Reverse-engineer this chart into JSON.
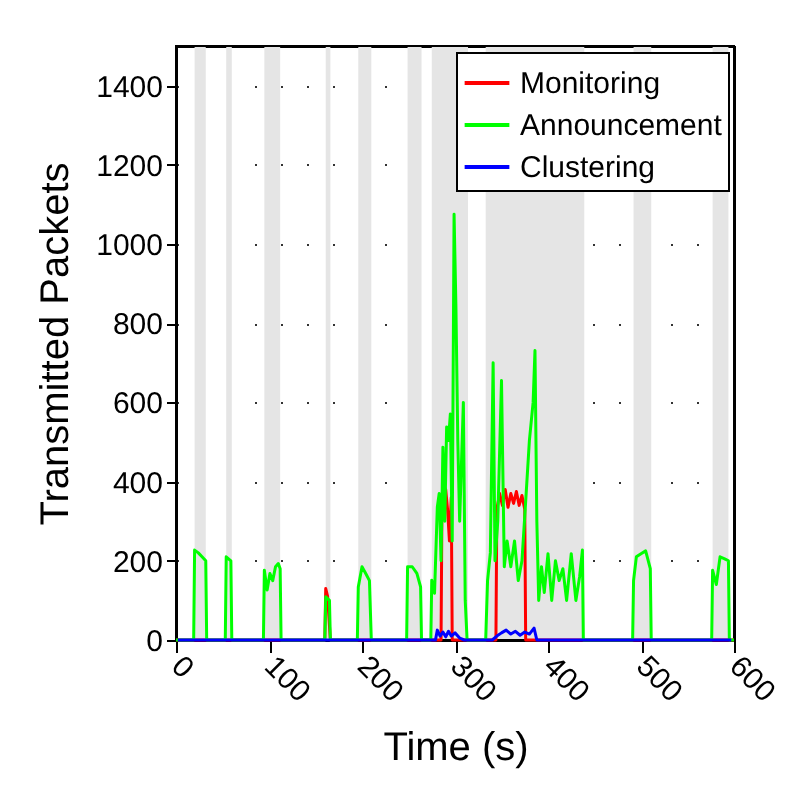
{
  "chart_data": {
    "type": "line",
    "xlabel": "Time (s)",
    "ylabel": "Transmitted Packets",
    "xlim": [
      0,
      600
    ],
    "ylim": [
      0,
      1500
    ],
    "xticks": [
      0,
      100,
      200,
      300,
      400,
      500,
      600
    ],
    "yticks": [
      0,
      200,
      400,
      600,
      800,
      1000,
      1200,
      1400
    ],
    "grid": "y",
    "legend": "top right",
    "line_style": "solid",
    "marker": "none",
    "bands": [
      {
        "axis": "x",
        "from": 20,
        "to": 32,
        "color": "#e5e5e5"
      },
      {
        "axis": "x",
        "from": 54,
        "to": 60,
        "color": "#e5e5e5"
      },
      {
        "axis": "x",
        "from": 95,
        "to": 112,
        "color": "#e5e5e5"
      },
      {
        "axis": "x",
        "from": 161,
        "to": 166,
        "color": "#e5e5e5"
      },
      {
        "axis": "x",
        "from": 196,
        "to": 210,
        "color": "#e5e5e5"
      },
      {
        "axis": "x",
        "from": 249,
        "to": 264,
        "color": "#e5e5e5"
      },
      {
        "axis": "x",
        "from": 275,
        "to": 314,
        "color": "#e5e5e5"
      },
      {
        "axis": "x",
        "from": 333,
        "to": 439,
        "color": "#e5e5e5"
      },
      {
        "axis": "x",
        "from": 492,
        "to": 511,
        "color": "#e5e5e5"
      },
      {
        "axis": "x",
        "from": 577,
        "to": 594,
        "color": "#e5e5e5"
      }
    ],
    "series": [
      {
        "name": "Monitoring",
        "color": "#ff0000",
        "x": [
          0,
          160,
          161,
          163,
          166,
          285,
          286,
          288,
          290,
          292,
          294,
          296,
          297,
          344,
          345,
          348,
          351,
          354,
          357,
          360,
          363,
          366,
          369,
          372,
          375,
          376,
          600
        ],
        "values": [
          0,
          0,
          130,
          110,
          0,
          0,
          350,
          390,
          380,
          330,
          250,
          360,
          0,
          0,
          330,
          370,
          340,
          380,
          335,
          370,
          345,
          375,
          340,
          365,
          330,
          0,
          0
        ]
      },
      {
        "name": "Announcement",
        "color": "#00ff00",
        "x": [
          0,
          19,
          20,
          24,
          28,
          32,
          33,
          53,
          54,
          59,
          60,
          94,
          95,
          98,
          101,
          104,
          107,
          110,
          112,
          113,
          160,
          161,
          165,
          166,
          195,
          196,
          200,
          204,
          208,
          210,
          248,
          249,
          254,
          259,
          263,
          264,
          274,
          275,
          278,
          281,
          283,
          285,
          287,
          289,
          291,
          293,
          295,
          297,
          299,
          301,
          303,
          305,
          309,
          311,
          313,
          333,
          335,
          338,
          341,
          343,
          346,
          350,
          353,
          356,
          360,
          364,
          368,
          372,
          376,
          380,
          384,
          386,
          388,
          390,
          393,
          396,
          400,
          404,
          408,
          412,
          416,
          420,
          425,
          430,
          434,
          437,
          438,
          491,
          492,
          495,
          500,
          505,
          510,
          511,
          576,
          577,
          581,
          585,
          590,
          594,
          595,
          600
        ],
        "values": [
          0,
          0,
          227,
          220,
          210,
          200,
          0,
          0,
          210,
          200,
          0,
          0,
          176,
          126,
          168,
          150,
          185,
          193,
          180,
          0,
          0,
          109,
          100,
          0,
          0,
          134,
          185,
          168,
          150,
          0,
          0,
          185,
          185,
          168,
          134,
          0,
          0,
          151,
          118,
          336,
          370,
          200,
          487,
          300,
          538,
          504,
          571,
          250,
          1075,
          840,
          504,
          300,
          600,
          100,
          0,
          0,
          150,
          220,
          700,
          200,
          300,
          655,
          185,
          250,
          185,
          250,
          150,
          200,
          350,
          504,
          600,
          731,
          300,
          100,
          185,
          120,
          218,
          100,
          200,
          150,
          180,
          100,
          218,
          100,
          160,
          227,
          0,
          0,
          150,
          210,
          218,
          225,
          180,
          0,
          0,
          176,
          140,
          210,
          205,
          200,
          0,
          0
        ]
      },
      {
        "name": "Clustering",
        "color": "#0000ff",
        "x": [
          2,
          279,
          281,
          284,
          287,
          290,
          293,
          296,
          300,
          305,
          310,
          340,
          345,
          350,
          355,
          360,
          365,
          370,
          375,
          380,
          385,
          388,
          597
        ],
        "values": [
          0,
          0,
          25,
          10,
          20,
          8,
          22,
          10,
          18,
          5,
          0,
          0,
          10,
          18,
          25,
          15,
          22,
          12,
          20,
          15,
          30,
          0,
          0
        ]
      }
    ]
  }
}
